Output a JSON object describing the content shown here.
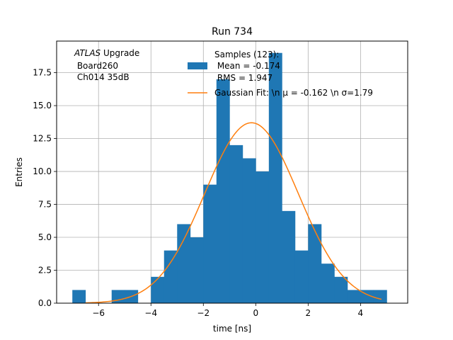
{
  "chart_data": {
    "type": "bar",
    "title": "Run 734",
    "xlabel": "time [ns]",
    "ylabel": "Entries",
    "xlim": [
      -7.6,
      5.8
    ],
    "ylim": [
      0,
      19.9
    ],
    "grid": true,
    "legend_placement": "top-right",
    "xticks": [
      -6,
      -4,
      -2,
      0,
      2,
      4
    ],
    "xtick_labels": [
      "−6",
      "−4",
      "−2",
      "0",
      "2",
      "4"
    ],
    "yticks": [
      0,
      2.5,
      5,
      7.5,
      10,
      12.5,
      15,
      17.5
    ],
    "ytick_labels": [
      "0.0",
      "2.5",
      "5.0",
      "7.5",
      "10.0",
      "12.5",
      "15.0",
      "17.5"
    ],
    "annotation": {
      "italic": "ATLAS",
      "line1_rest": " Upgrade",
      "line2": " Board260",
      "line3": " Ch014 35dB"
    },
    "histogram": {
      "name_lines": [
        "Samples (123):",
        " Mean = -0.174",
        " RMS = 1.947"
      ],
      "color": "#1f77b4",
      "bin_edges": [
        -7.0,
        -6.5,
        -6.0,
        -5.5,
        -5.0,
        -4.5,
        -4.0,
        -3.5,
        -3.0,
        -2.5,
        -2.0,
        -1.5,
        -1.0,
        -0.5,
        0.0,
        0.5,
        1.0,
        1.5,
        2.0,
        2.5,
        3.0,
        3.5,
        4.0,
        4.5,
        5.0
      ],
      "counts": [
        1,
        0,
        0,
        1,
        1,
        0,
        2,
        4,
        6,
        5,
        9,
        17,
        12,
        11,
        10,
        19,
        7,
        4,
        6,
        3,
        2,
        1,
        1,
        1
      ]
    },
    "fit": {
      "name": "Gaussian Fit: \\n μ = -0.162 \\n σ=1.79",
      "color": "#ff7f0e",
      "x_range": [
        -6.5,
        4.8
      ],
      "mu": -0.162,
      "sigma": 1.79,
      "amplitude": 13.7
    }
  }
}
